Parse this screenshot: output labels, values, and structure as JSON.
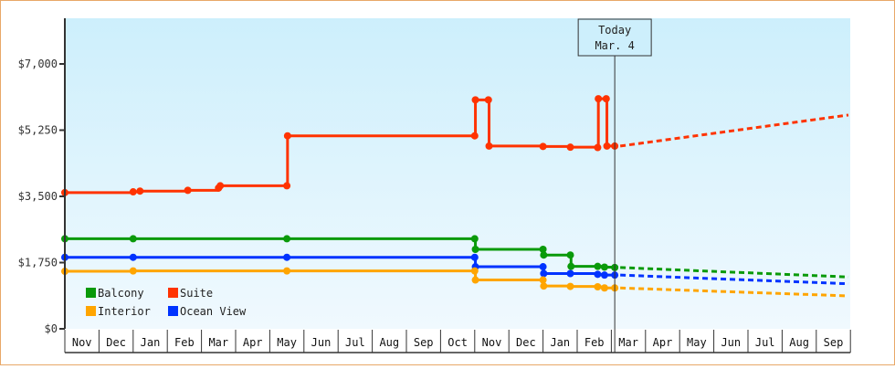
{
  "chart_data": {
    "type": "line",
    "title": "",
    "xlabel": "",
    "ylabel": "",
    "ylim": [
      0,
      7000
    ],
    "y_ticks": [
      {
        "value": 0,
        "label": "$0"
      },
      {
        "value": 1750,
        "label": "$1,750"
      },
      {
        "value": 3500,
        "label": "$3,500"
      },
      {
        "value": 5250,
        "label": "$5,250"
      },
      {
        "value": 7000,
        "label": "$7,000"
      }
    ],
    "x_months": [
      "Nov",
      "Dec",
      "Jan",
      "Feb",
      "Mar",
      "Apr",
      "May",
      "Jun",
      "Jul",
      "Aug",
      "Sep",
      "Oct",
      "Nov",
      "Dec",
      "Jan",
      "Feb",
      "Mar",
      "Apr",
      "May",
      "Jun",
      "Jul",
      "Aug",
      "Sep"
    ],
    "grid": false,
    "background_gradient": [
      "#cdeffc",
      "#f0f9fe"
    ],
    "today_marker": {
      "line1": "Today",
      "line2": "Mar. 4",
      "month_index": 16.1
    },
    "legend": {
      "position": "bottom-left-inside",
      "entries": [
        {
          "name": "Balcony",
          "color": "#0a9a0a"
        },
        {
          "name": "Suite",
          "color": "#ff3300"
        },
        {
          "name": "Interior",
          "color": "#ffa500"
        },
        {
          "name": "Ocean View",
          "color": "#0033ff"
        }
      ]
    },
    "series": [
      {
        "name": "Suite",
        "color": "#ff3300",
        "style": "step",
        "points": [
          [
            0,
            3600
          ],
          [
            2.0,
            3620
          ],
          [
            2.2,
            3640
          ],
          [
            3.6,
            3660
          ],
          [
            4.5,
            3720
          ],
          [
            4.55,
            3780
          ],
          [
            6.5,
            3780
          ],
          [
            6.52,
            5100
          ],
          [
            12.0,
            5100
          ],
          [
            12.02,
            6050
          ],
          [
            12.4,
            6050
          ],
          [
            12.42,
            4830
          ],
          [
            14.0,
            4820
          ],
          [
            14.8,
            4800
          ],
          [
            15.6,
            4790
          ],
          [
            15.62,
            6080
          ],
          [
            15.85,
            6080
          ],
          [
            15.87,
            4830
          ],
          [
            16.1,
            4830
          ]
        ],
        "forecast": [
          [
            16.1,
            4830
          ],
          [
            23.0,
            5650
          ]
        ]
      },
      {
        "name": "Balcony",
        "color": "#0a9a0a",
        "style": "step",
        "points": [
          [
            0,
            2380
          ],
          [
            2.0,
            2380
          ],
          [
            6.5,
            2380
          ],
          [
            12.0,
            2380
          ],
          [
            12.02,
            2100
          ],
          [
            14.0,
            2100
          ],
          [
            14.02,
            1950
          ],
          [
            14.8,
            1950
          ],
          [
            14.82,
            1650
          ],
          [
            15.6,
            1650
          ],
          [
            15.8,
            1630
          ],
          [
            16.1,
            1620
          ]
        ],
        "forecast": [
          [
            16.1,
            1620
          ],
          [
            23.0,
            1370
          ]
        ]
      },
      {
        "name": "Ocean View",
        "color": "#0033ff",
        "style": "step",
        "points": [
          [
            0,
            1890
          ],
          [
            2.0,
            1890
          ],
          [
            6.5,
            1890
          ],
          [
            12.0,
            1890
          ],
          [
            12.02,
            1640
          ],
          [
            14.0,
            1640
          ],
          [
            14.02,
            1460
          ],
          [
            14.8,
            1460
          ],
          [
            15.6,
            1440
          ],
          [
            15.8,
            1420
          ],
          [
            16.1,
            1420
          ]
        ],
        "forecast": [
          [
            16.1,
            1420
          ],
          [
            23.0,
            1190
          ]
        ]
      },
      {
        "name": "Interior",
        "color": "#ffa500",
        "style": "step",
        "points": [
          [
            0,
            1520
          ],
          [
            2.0,
            1530
          ],
          [
            6.5,
            1530
          ],
          [
            12.0,
            1530
          ],
          [
            12.02,
            1290
          ],
          [
            14.0,
            1290
          ],
          [
            14.02,
            1130
          ],
          [
            14.8,
            1120
          ],
          [
            15.6,
            1110
          ],
          [
            15.8,
            1080
          ],
          [
            16.1,
            1080
          ]
        ],
        "forecast": [
          [
            16.1,
            1080
          ],
          [
            23.0,
            870
          ]
        ]
      }
    ]
  }
}
